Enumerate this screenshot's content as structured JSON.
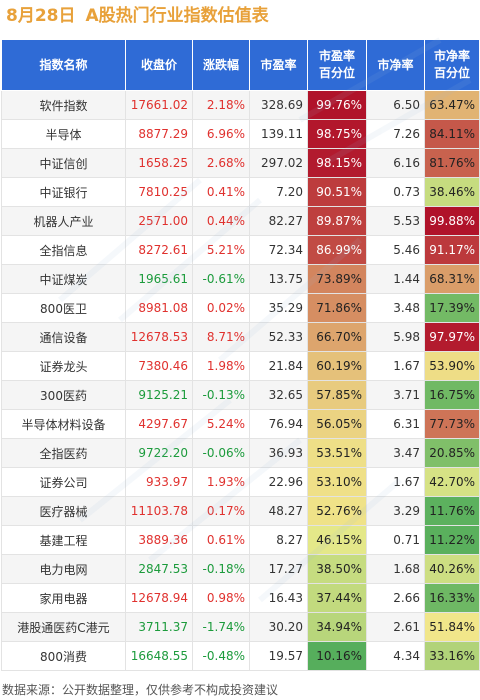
{
  "title": {
    "date": "8月28日",
    "text": "A股热门行业指数估值表"
  },
  "table": {
    "headers": [
      [
        "指数名称"
      ],
      [
        "收盘价"
      ],
      [
        "涨跌幅"
      ],
      [
        "市盈率"
      ],
      [
        "市盈率",
        "百分位"
      ],
      [
        "市净率"
      ],
      [
        "市净率",
        "百分位"
      ]
    ],
    "rows": [
      {
        "name": "软件指数",
        "close": "17661.02",
        "change": "2.18%",
        "pe": "328.69",
        "pe_pct": "99.76%",
        "pe_pct_value": 99.76,
        "pb": "6.50",
        "pb_pct": "63.47%",
        "pb_pct_value": 63.47
      },
      {
        "name": "半导体",
        "close": "8877.29",
        "change": "6.96%",
        "pe": "139.11",
        "pe_pct": "98.75%",
        "pe_pct_value": 98.75,
        "pb": "7.26",
        "pb_pct": "84.11%",
        "pb_pct_value": 84.11
      },
      {
        "name": "中证信创",
        "close": "1658.25",
        "change": "2.68%",
        "pe": "297.02",
        "pe_pct": "98.15%",
        "pe_pct_value": 98.15,
        "pb": "6.16",
        "pb_pct": "81.76%",
        "pb_pct_value": 81.76
      },
      {
        "name": "中证银行",
        "close": "7810.25",
        "change": "0.41%",
        "pe": "7.20",
        "pe_pct": "90.51%",
        "pe_pct_value": 90.51,
        "pb": "0.73",
        "pb_pct": "38.46%",
        "pb_pct_value": 38.46
      },
      {
        "name": "机器人产业",
        "close": "2571.00",
        "change": "0.44%",
        "pe": "82.27",
        "pe_pct": "89.87%",
        "pe_pct_value": 89.87,
        "pb": "5.53",
        "pb_pct": "99.88%",
        "pb_pct_value": 99.88
      },
      {
        "name": "全指信息",
        "close": "8272.61",
        "change": "5.21%",
        "pe": "72.34",
        "pe_pct": "86.99%",
        "pe_pct_value": 86.99,
        "pb": "5.46",
        "pb_pct": "91.17%",
        "pb_pct_value": 91.17
      },
      {
        "name": "中证煤炭",
        "close": "1965.61",
        "change": "-0.61%",
        "pe": "13.75",
        "pe_pct": "73.89%",
        "pe_pct_value": 73.89,
        "pb": "1.44",
        "pb_pct": "68.31%",
        "pb_pct_value": 68.31
      },
      {
        "name": "800医卫",
        "close": "8981.08",
        "change": "0.02%",
        "pe": "35.29",
        "pe_pct": "71.86%",
        "pe_pct_value": 71.86,
        "pb": "3.48",
        "pb_pct": "17.39%",
        "pb_pct_value": 17.39
      },
      {
        "name": "通信设备",
        "close": "12678.53",
        "change": "8.71%",
        "pe": "52.33",
        "pe_pct": "66.70%",
        "pe_pct_value": 66.7,
        "pb": "5.98",
        "pb_pct": "97.97%",
        "pb_pct_value": 97.97
      },
      {
        "name": "证券龙头",
        "close": "7380.46",
        "change": "1.98%",
        "pe": "21.84",
        "pe_pct": "60.19%",
        "pe_pct_value": 60.19,
        "pb": "1.67",
        "pb_pct": "53.90%",
        "pb_pct_value": 53.9
      },
      {
        "name": "300医药",
        "close": "9125.21",
        "change": "-0.13%",
        "pe": "32.65",
        "pe_pct": "57.85%",
        "pe_pct_value": 57.85,
        "pb": "3.71",
        "pb_pct": "16.75%",
        "pb_pct_value": 16.75
      },
      {
        "name": "半导体材料设备",
        "close": "4297.67",
        "change": "5.24%",
        "pe": "76.94",
        "pe_pct": "56.05%",
        "pe_pct_value": 56.05,
        "pb": "6.31",
        "pb_pct": "77.73%",
        "pb_pct_value": 77.73
      },
      {
        "name": "全指医药",
        "close": "9722.20",
        "change": "-0.06%",
        "pe": "36.93",
        "pe_pct": "53.51%",
        "pe_pct_value": 53.51,
        "pb": "3.47",
        "pb_pct": "20.85%",
        "pb_pct_value": 20.85
      },
      {
        "name": "证券公司",
        "close": "933.97",
        "change": "1.93%",
        "pe": "22.96",
        "pe_pct": "53.10%",
        "pe_pct_value": 53.1,
        "pb": "1.67",
        "pb_pct": "42.70%",
        "pb_pct_value": 42.7
      },
      {
        "name": "医疗器械",
        "close": "11103.78",
        "change": "0.17%",
        "pe": "48.27",
        "pe_pct": "52.76%",
        "pe_pct_value": 52.76,
        "pb": "3.29",
        "pb_pct": "11.76%",
        "pb_pct_value": 11.76
      },
      {
        "name": "基建工程",
        "close": "3889.36",
        "change": "0.61%",
        "pe": "8.27",
        "pe_pct": "46.15%",
        "pe_pct_value": 46.15,
        "pb": "0.71",
        "pb_pct": "11.22%",
        "pb_pct_value": 11.22
      },
      {
        "name": "电力电网",
        "close": "2847.53",
        "change": "-0.18%",
        "pe": "17.27",
        "pe_pct": "38.50%",
        "pe_pct_value": 38.5,
        "pb": "1.68",
        "pb_pct": "40.26%",
        "pb_pct_value": 40.26
      },
      {
        "name": "家用电器",
        "close": "12678.94",
        "change": "0.98%",
        "pe": "16.43",
        "pe_pct": "37.44%",
        "pe_pct_value": 37.44,
        "pb": "2.66",
        "pb_pct": "16.33%",
        "pb_pct_value": 16.33
      },
      {
        "name": "港股通医药C港元",
        "close": "3711.37",
        "change": "-1.74%",
        "pe": "30.20",
        "pe_pct": "34.94%",
        "pe_pct_value": 34.94,
        "pb": "2.61",
        "pb_pct": "51.84%",
        "pb_pct_value": 51.84
      },
      {
        "name": "800消费",
        "close": "16648.55",
        "change": "-0.48%",
        "pe": "19.57",
        "pe_pct": "10.16%",
        "pe_pct_value": 10.16,
        "pb": "4.34",
        "pb_pct": "33.16%",
        "pb_pct_value": 33.16
      }
    ]
  },
  "colors": {
    "title": "#e8a13a",
    "header_bg": "#2f6bd6",
    "up": "#e0312e",
    "down": "#1c9b3c",
    "scale_low": "#2e9e4f",
    "scale_mid": "#f3ee8e",
    "scale_high": "#b0122a"
  },
  "footer": "数据来源：公开数据整理，仅供参考不构成投资建议"
}
